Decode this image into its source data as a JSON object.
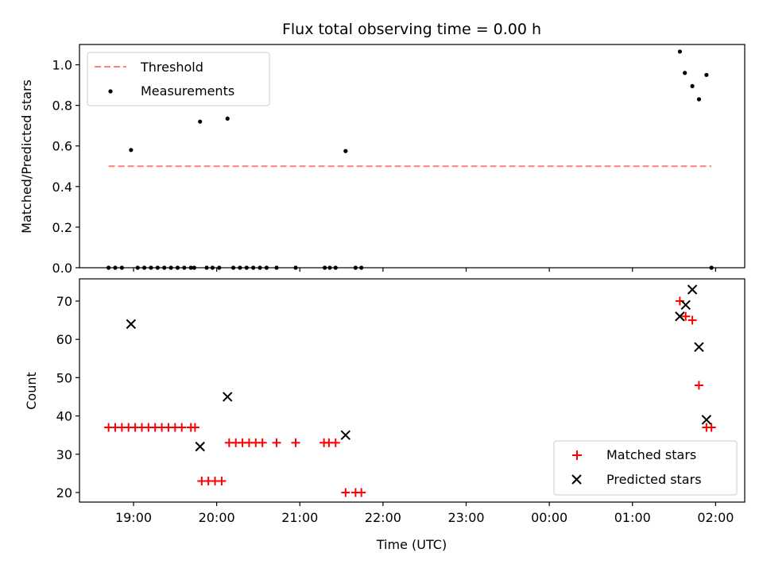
{
  "chart_data": [
    {
      "type": "scatter",
      "title": "Flux total observing time = 0.00 h",
      "ylabel": "Matched/Predicted stars",
      "xlim": [
        18.35,
        26.35
      ],
      "ylim": [
        0,
        1.1
      ],
      "x_ticks": [
        19,
        20,
        21,
        22,
        23,
        24,
        25,
        26
      ],
      "y_ticks": [
        0.0,
        0.2,
        0.4,
        0.6,
        0.8,
        1.0
      ],
      "y_tick_labels": [
        "0.0",
        "0.2",
        "0.4",
        "0.6",
        "0.8",
        "1.0"
      ],
      "legend_position": "upper-left",
      "threshold": {
        "name": "Threshold",
        "value": 0.5,
        "x_range": [
          18.7,
          25.95
        ],
        "color": "#ff8080"
      },
      "series": [
        {
          "name": "Measurements",
          "color": "#000000",
          "points": [
            [
              18.7,
              0
            ],
            [
              18.78,
              0
            ],
            [
              18.86,
              0
            ],
            [
              18.97,
              0.58
            ],
            [
              19.05,
              0
            ],
            [
              19.13,
              0
            ],
            [
              19.21,
              0
            ],
            [
              19.29,
              0
            ],
            [
              19.37,
              0
            ],
            [
              19.45,
              0
            ],
            [
              19.53,
              0
            ],
            [
              19.61,
              0
            ],
            [
              19.69,
              0
            ],
            [
              19.73,
              0
            ],
            [
              19.8,
              0.72
            ],
            [
              19.88,
              0
            ],
            [
              19.95,
              0
            ],
            [
              20.03,
              0
            ],
            [
              20.13,
              0.735
            ],
            [
              20.2,
              0
            ],
            [
              20.28,
              0
            ],
            [
              20.36,
              0
            ],
            [
              20.44,
              0
            ],
            [
              20.52,
              0
            ],
            [
              20.6,
              0
            ],
            [
              20.72,
              0
            ],
            [
              20.95,
              0
            ],
            [
              21.3,
              0
            ],
            [
              21.36,
              0
            ],
            [
              21.43,
              0
            ],
            [
              21.55,
              0.575
            ],
            [
              21.67,
              0
            ],
            [
              21.74,
              0
            ],
            [
              25.57,
              1.065
            ],
            [
              25.63,
              0.96
            ],
            [
              25.72,
              0.895
            ],
            [
              25.8,
              0.83
            ],
            [
              25.89,
              0.95
            ],
            [
              25.95,
              0
            ]
          ]
        }
      ]
    },
    {
      "type": "scatter",
      "xlabel": "Time (UTC)",
      "ylabel": "Count",
      "xlim": [
        18.35,
        26.35
      ],
      "ylim": [
        17.5,
        75.8
      ],
      "x_ticks": [
        19,
        20,
        21,
        22,
        23,
        24,
        25,
        26
      ],
      "x_tick_labels": [
        "19:00",
        "20:00",
        "21:00",
        "22:00",
        "23:00",
        "00:00",
        "01:00",
        "02:00"
      ],
      "y_ticks": [
        20,
        30,
        40,
        50,
        60,
        70
      ],
      "y_tick_labels": [
        "20",
        "30",
        "40",
        "50",
        "60",
        "70"
      ],
      "legend_position": "lower-right",
      "series": [
        {
          "name": "Matched stars",
          "marker": "plus",
          "color": "#ff0000",
          "points": [
            [
              18.7,
              37
            ],
            [
              18.78,
              37
            ],
            [
              18.86,
              37
            ],
            [
              18.94,
              37
            ],
            [
              19.02,
              37
            ],
            [
              19.1,
              37
            ],
            [
              19.18,
              37
            ],
            [
              19.26,
              37
            ],
            [
              19.34,
              37
            ],
            [
              19.42,
              37
            ],
            [
              19.5,
              37
            ],
            [
              19.58,
              37
            ],
            [
              19.69,
              37
            ],
            [
              19.74,
              37
            ],
            [
              19.82,
              23
            ],
            [
              19.9,
              23
            ],
            [
              19.98,
              23
            ],
            [
              20.06,
              23
            ],
            [
              20.15,
              33
            ],
            [
              20.23,
              33
            ],
            [
              20.31,
              33
            ],
            [
              20.39,
              33
            ],
            [
              20.47,
              33
            ],
            [
              20.55,
              33
            ],
            [
              20.72,
              33
            ],
            [
              20.95,
              33
            ],
            [
              21.29,
              33
            ],
            [
              21.35,
              33
            ],
            [
              21.43,
              33
            ],
            [
              21.55,
              20
            ],
            [
              21.67,
              20
            ],
            [
              21.74,
              20
            ],
            [
              25.57,
              70
            ],
            [
              25.64,
              66
            ],
            [
              25.72,
              65
            ],
            [
              25.8,
              48
            ],
            [
              25.89,
              37
            ],
            [
              25.95,
              37
            ]
          ]
        },
        {
          "name": "Predicted stars",
          "marker": "x",
          "color": "#000000",
          "points": [
            [
              18.97,
              64
            ],
            [
              19.8,
              32
            ],
            [
              20.13,
              45
            ],
            [
              21.55,
              35
            ],
            [
              25.57,
              66
            ],
            [
              25.64,
              69
            ],
            [
              25.72,
              73
            ],
            [
              25.8,
              58
            ],
            [
              25.89,
              39
            ]
          ]
        }
      ]
    }
  ]
}
